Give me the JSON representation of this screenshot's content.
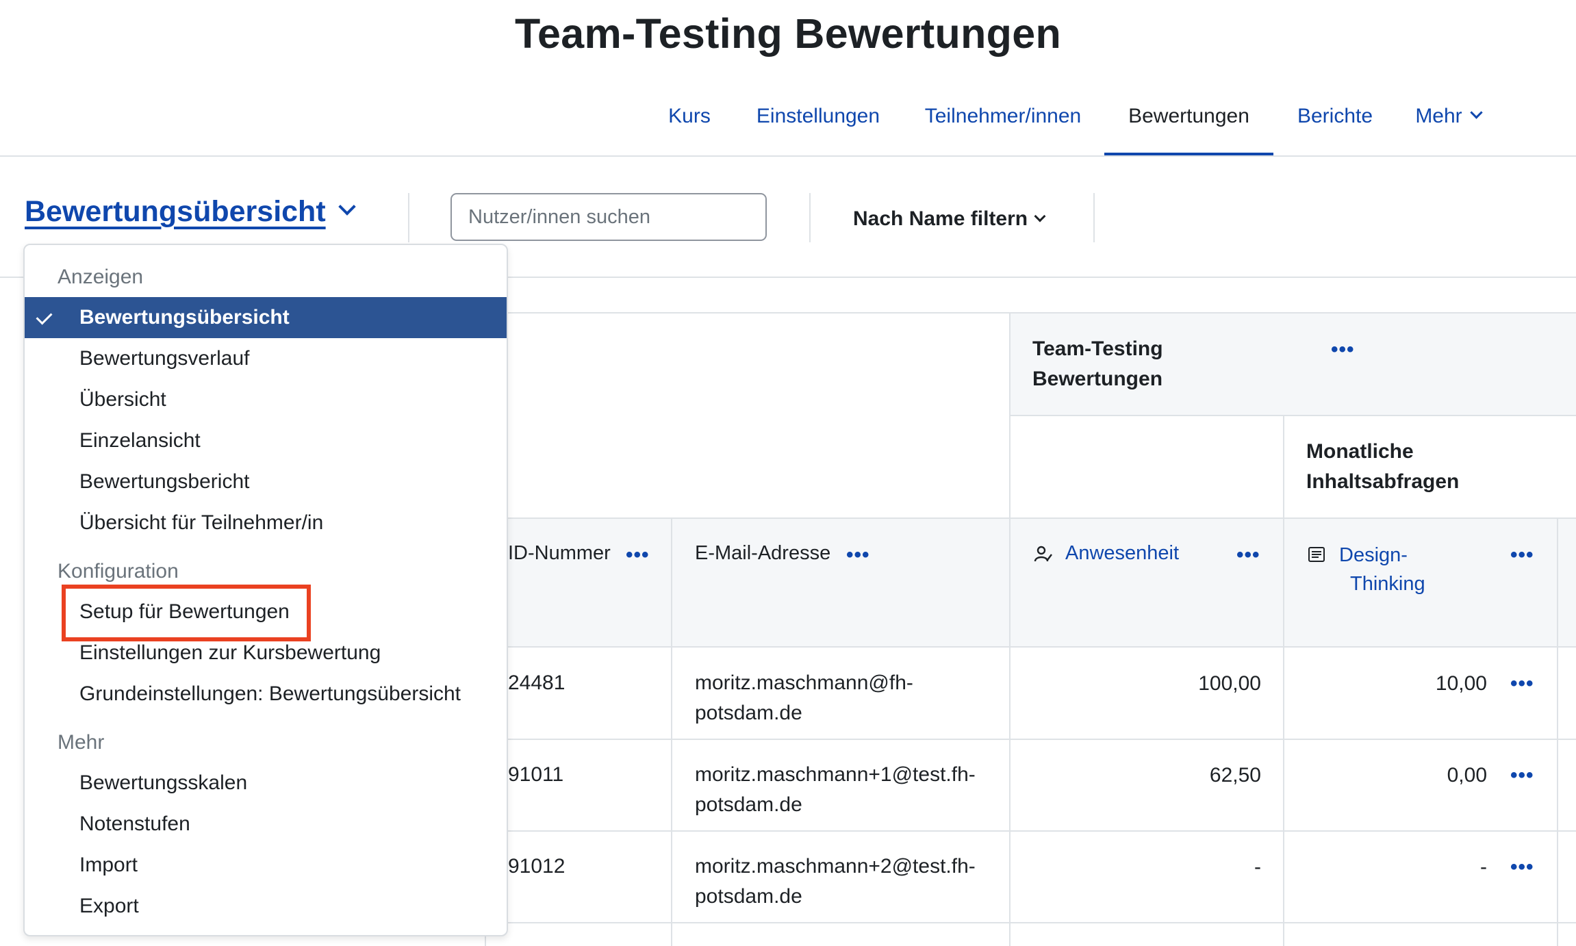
{
  "page_title": "Team-Testing Bewertungen",
  "nav": {
    "tabs": [
      {
        "label": "Kurs"
      },
      {
        "label": "Einstellungen"
      },
      {
        "label": "Teilnehmer/innen"
      },
      {
        "label": "Bewertungen",
        "active": true
      },
      {
        "label": "Berichte"
      },
      {
        "label": "Mehr"
      }
    ]
  },
  "tertiary": {
    "report_selector": "Bewertungsübersicht",
    "search_placeholder": "Nutzer/innen suchen",
    "name_filter": "Nach Name filtern"
  },
  "dropdown": {
    "sections": [
      {
        "header": "Anzeigen",
        "items": [
          "Bewertungsübersicht",
          "Bewertungsverlauf",
          "Übersicht",
          "Einzelansicht",
          "Bewertungsbericht",
          "Übersicht für Teilnehmer/in"
        ]
      },
      {
        "header": "Konfiguration",
        "items": [
          "Setup für Bewertungen",
          "Einstellungen zur Kursbewertung",
          "Grundeinstellungen: Bewertungsübersicht"
        ]
      },
      {
        "header": "Mehr",
        "items": [
          "Bewertungsskalen",
          "Notenstufen",
          "Import",
          "Export"
        ]
      }
    ],
    "selected": "Bewertungsübersicht",
    "highlighted": "Setup für Bewertungen"
  },
  "table": {
    "category_title_line1": "Team-Testing",
    "category_title_line2": "Bewertungen",
    "subcategory_title_line1": "Monatliche",
    "subcategory_title_line2": "Inhaltsabfragen",
    "col_id": "ID-Nummer",
    "col_email": "E-Mail-Adresse",
    "col_attendance": "Anwesenheit",
    "col_design_line1": "Design-",
    "col_design_line2": "Thinking",
    "actions_icon": "more-actions-icon",
    "attendance_icon": "attendance-icon",
    "assignment_icon": "assignment-icon",
    "rows": [
      {
        "id": "24481",
        "email_line1": "moritz.maschmann@fh-",
        "email_line2": "potsdam.de",
        "attendance": "100,00",
        "design": "10,00"
      },
      {
        "id": "91011",
        "email_line1": "moritz.maschmann+1@test.fh-",
        "email_line2": "potsdam.de",
        "attendance": "62,50",
        "design": "0,00"
      },
      {
        "id": "91012",
        "email_line1": "moritz.maschmann+2@test.fh-",
        "email_line2": "potsdam.de",
        "attendance": "-",
        "design": "-"
      }
    ]
  },
  "colors": {
    "link": "#0f47ad",
    "selected_bg": "#2c5493",
    "highlight": "#ea4121"
  }
}
